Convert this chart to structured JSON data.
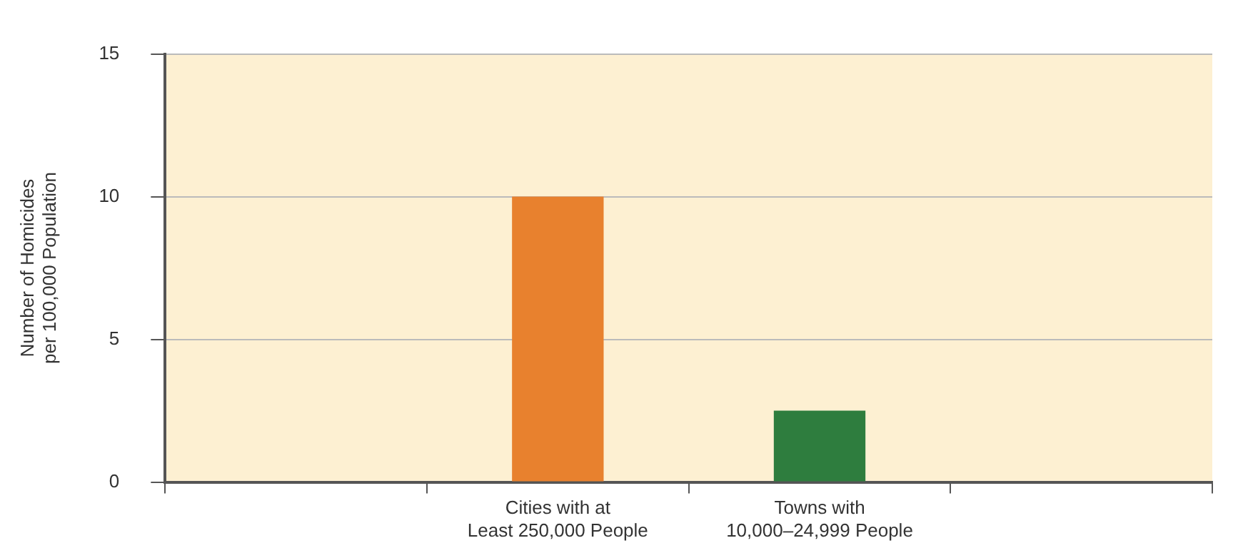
{
  "chart_data": {
    "type": "bar",
    "ylabel": "Number of Homicides per 100,000 Population",
    "categories": [
      null,
      "Cities with at Least 250,000 People",
      "Towns with 10,000–24,999 People",
      null
    ],
    "values": [
      null,
      10,
      2.5,
      null
    ],
    "colors": [
      "#e8812e",
      "#e8812e",
      "#2e7d3e",
      "#2e7d3e"
    ],
    "ylim": [
      0,
      15
    ],
    "yticks": [
      0,
      5,
      10,
      15
    ],
    "grid": "y",
    "legend": false
  }
}
